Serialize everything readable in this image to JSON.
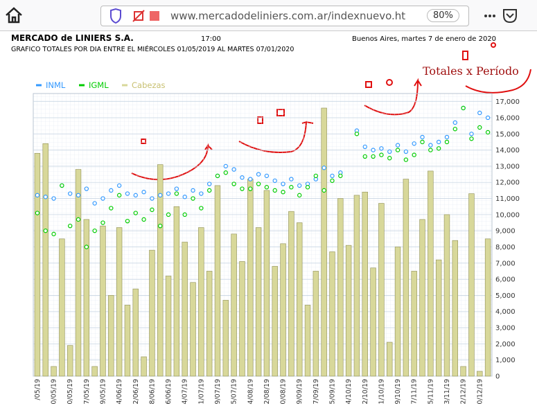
{
  "browser": {
    "url": "www.mercadodeliniers.com.ar/indexnuevo.ht",
    "zoom": "80%"
  },
  "page": {
    "company": "MERCADO de LINIERS S.A.",
    "time": "17:00",
    "date": "Buenos Aires, martes 7 de enero de 2020",
    "subtitle": "GRAFICO TOTALES POR DIA ENTRE EL MIÉRCOLES 01/05/2019 AL MARTES 07/01/2020"
  },
  "annotation": "Totales x Período",
  "chart_data": {
    "type": "bar",
    "categories": [
      "/05/19",
      null,
      "0/05/19",
      null,
      "0/05/19",
      null,
      "7/05/19",
      null,
      "9/05/19",
      null,
      "4/06/19",
      null,
      "2/06/19",
      null,
      "8/06/19",
      null,
      "6/06/19",
      null,
      "4/07/19",
      null,
      "1/07/19",
      null,
      "9/07/19",
      null,
      "5/07/19",
      null,
      "4/08/19",
      null,
      "2/08/19",
      null,
      "0/08/19",
      null,
      "9/09/19",
      null,
      "7/09/19",
      null,
      "5/09/19",
      null,
      "4/10/19",
      null,
      "2/10/19",
      null,
      "1/10/19",
      null,
      "9/10/19",
      null,
      "7/11/19",
      null,
      "5/11/19",
      null,
      "3/11/19",
      null,
      "2/12/19",
      null,
      "0/12/19",
      null
    ],
    "series": [
      {
        "name": "Cabezas",
        "type": "bar",
        "color": "#d8d89a",
        "values": [
          13800,
          14400,
          600,
          8500,
          1900,
          12800,
          9700,
          600,
          9300,
          5000,
          9200,
          4400,
          5400,
          1200,
          7800,
          13100,
          6200,
          10500,
          8300,
          5800,
          9200,
          6500,
          11800,
          4700,
          8800,
          7100,
          12200,
          9200,
          11500,
          6800,
          8200,
          10200,
          9500,
          4400,
          6500,
          16600,
          7700,
          11000,
          8100,
          11200,
          11400,
          6700,
          10700,
          2100,
          8000,
          12200,
          6500,
          9700,
          12700,
          7200,
          10000,
          8400,
          600,
          11300,
          300,
          8500
        ]
      },
      {
        "name": "INML",
        "type": "line",
        "color": "#3399ff",
        "values": [
          11200,
          11100,
          11000,
          11800,
          11300,
          11200,
          11600,
          10700,
          11000,
          11500,
          11800,
          11300,
          11200,
          11400,
          11000,
          11200,
          11300,
          11600,
          11100,
          11500,
          11300,
          11900,
          12400,
          13000,
          12800,
          12300,
          12200,
          12500,
          12400,
          12100,
          11900,
          12200,
          11800,
          11900,
          12200,
          12900,
          12400,
          12600,
          null,
          15200,
          14200,
          14000,
          14100,
          13900,
          14300,
          13900,
          14400,
          14800,
          14300,
          14500,
          14800,
          15700,
          16600,
          15000,
          16300,
          16000
        ]
      },
      {
        "name": "IGML",
        "type": "line",
        "color": "#00cc00",
        "values": [
          10100,
          9000,
          8800,
          11800,
          9300,
          9700,
          8000,
          9000,
          9500,
          10400,
          11200,
          9600,
          10100,
          9700,
          10300,
          9300,
          10000,
          11300,
          10000,
          11000,
          10400,
          11500,
          12400,
          12600,
          11900,
          11600,
          11600,
          11900,
          11700,
          11500,
          11400,
          11700,
          11200,
          11700,
          12400,
          11500,
          12100,
          12400,
          null,
          15000,
          13600,
          13600,
          13700,
          13500,
          14000,
          13400,
          13700,
          14500,
          14000,
          14100,
          14500,
          15300,
          16600,
          14700,
          15400,
          15100
        ]
      }
    ],
    "ylim": [
      0,
      17500
    ],
    "yticks": [
      0,
      {
        "value": 1000,
        "label": "1,000"
      },
      {
        "value": 2000,
        "label": "2,000"
      },
      {
        "value": 3000,
        "label": "3,000"
      },
      {
        "value": 4000,
        "label": "4,000"
      },
      {
        "value": 5000,
        "label": "5,000"
      },
      {
        "value": 6000,
        "label": "6,000"
      },
      {
        "value": 7000,
        "label": "7,000"
      },
      {
        "value": 8000,
        "label": "8,000"
      },
      {
        "value": 9000,
        "label": "9,000"
      },
      {
        "value": 10000,
        "label": "10,000"
      },
      {
        "value": 11000,
        "label": "11,000"
      },
      {
        "value": 12000,
        "label": "12,000"
      },
      {
        "value": 13000,
        "label": "13,000"
      },
      {
        "value": 14000,
        "label": "14,000"
      },
      {
        "value": 15000,
        "label": "15,000"
      },
      {
        "value": 16000,
        "label": "16,000"
      },
      {
        "value": 17000,
        "label": "17,000"
      }
    ],
    "grid": true
  }
}
